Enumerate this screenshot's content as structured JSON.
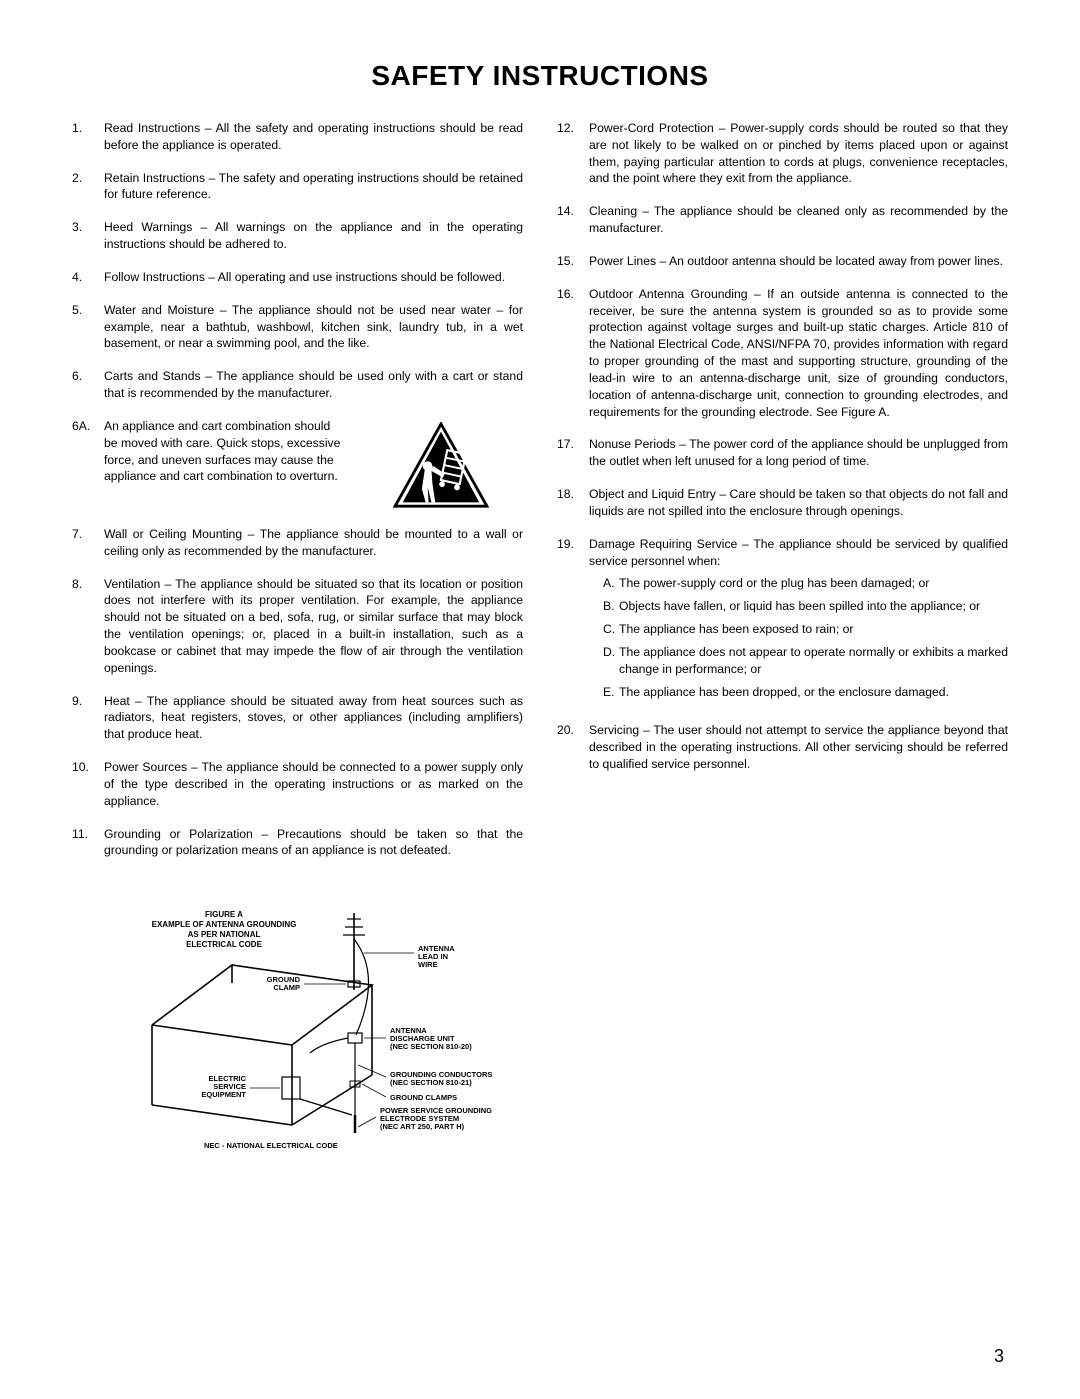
{
  "title": "SAFETY INSTRUCTIONS",
  "pageNumber": "3",
  "left": [
    {
      "n": "1.",
      "t": "Read Instructions – All the safety and operating instructions should be read before the appliance is operated."
    },
    {
      "n": "2.",
      "t": "Retain Instructions – The safety and operating instructions should be retained for future reference."
    },
    {
      "n": "3.",
      "t": "Heed Warnings – All warnings on the appliance and in the operating instructions should be adhered to."
    },
    {
      "n": "4.",
      "t": "Follow Instructions – All operating and use instructions should be followed."
    },
    {
      "n": "5.",
      "t": "Water and Moisture – The appliance should not be used near water – for example, near a bathtub, washbowl, kitchen sink, laundry tub, in a wet basement, or near a swimming pool, and the like."
    },
    {
      "n": "6.",
      "t": "Carts and Stands – The appliance should be used only with a cart or stand that is recommended by the manufacturer."
    }
  ],
  "left6A": {
    "n": "6A.",
    "t": "An appliance and cart combination should be moved with care. Quick stops, excessive force, and uneven surfaces may cause the appliance and cart combination to overturn."
  },
  "left2": [
    {
      "n": "7.",
      "t": "Wall or Ceiling Mounting – The appliance should be mounted to a wall or ceiling only as recommended by the manufacturer."
    },
    {
      "n": "8.",
      "t": "Ventilation – The appliance should be situated so that its location or position does not interfere with its proper ventilation. For example, the appliance should not be situated on a bed, sofa, rug, or similar surface that may block the ventilation openings; or, placed in a built-in installation, such as a bookcase or cabinet that may impede the flow of air through the ventilation openings."
    },
    {
      "n": "9.",
      "t": "Heat – The appliance should be situated away from heat sources such as radiators, heat registers, stoves, or other appliances (including amplifiers) that produce heat."
    },
    {
      "n": "10.",
      "t": "Power Sources – The appliance should be connected to a power supply only of the type described in the operating instructions or as marked on the appliance."
    },
    {
      "n": "11.",
      "t": "Grounding or Polarization – Precautions should be taken so that the grounding or polarization means of an appliance is not defeated."
    }
  ],
  "right": [
    {
      "n": "12.",
      "t": "Power-Cord Protection – Power-supply cords should be routed so that they are not likely to be walked on or pinched by items placed upon or against them, paying particular attention to cords at plugs, convenience receptacles, and the point where they exit from the appliance."
    },
    {
      "n": "14.",
      "t": "Cleaning – The appliance should be cleaned only as recommended by the manufacturer."
    },
    {
      "n": "15.",
      "t": "Power Lines – An outdoor antenna should be located away from power lines."
    },
    {
      "n": "16.",
      "t": "Outdoor Antenna Grounding – If an outside antenna is connected to the receiver, be sure the antenna system is grounded so as to provide some protection against voltage surges and built-up static charges. Article 810 of the National Electrical Code, ANSI/NFPA 70, provides information with regard to proper grounding of the mast and supporting structure, grounding of the lead-in wire to an antenna-discharge unit, size of grounding conductors, location of antenna-discharge unit, connection to grounding electrodes, and requirements for the grounding electrode. See Figure A."
    },
    {
      "n": "17.",
      "t": "Nonuse Periods – The power cord of the appliance should be unplugged from the outlet when left unused for a long period of time."
    },
    {
      "n": "18.",
      "t": "Object and Liquid Entry – Care should be taken so that objects do not fall and liquids are not spilled into the enclosure through openings."
    }
  ],
  "right19": {
    "n": "19.",
    "lead": "Damage Requiring Service – The appliance should be serviced by qualified service personnel when:",
    "subs": [
      {
        "l": "A.",
        "t": "The power-supply cord or the plug has been damaged; or"
      },
      {
        "l": "B.",
        "t": "Objects have fallen, or liquid has been spilled into the appliance; or"
      },
      {
        "l": "C.",
        "t": "The appliance has been exposed to rain; or"
      },
      {
        "l": "D.",
        "t": "The appliance does not appear to operate normally or exhibits a marked change in performance; or"
      },
      {
        "l": "E.",
        "t": "The appliance has been dropped, or the enclosure damaged."
      }
    ]
  },
  "right2": [
    {
      "n": "20.",
      "t": "Servicing – The user should not attempt to service the appliance beyond that described in the operating instructions. All other servicing should be referred to qualified service personnel."
    }
  ],
  "figure": {
    "caption1": "FIGURE A",
    "caption2": "EXAMPLE OF ANTENNA GROUNDING",
    "caption3": "AS PER NATIONAL",
    "caption4": "ELECTRICAL CODE",
    "lbl_antenna": "ANTENNA LEAD IN WIRE",
    "lbl_ground_clamp": "GROUND CLAMP",
    "lbl_discharge": "ANTENNA DISCHARGE UNIT (NEC SECTION 810-20)",
    "lbl_electric": "ELECTRIC SERVICE EQUIPMENT",
    "lbl_conductors": "GROUNDING CONDUCTORS (NEC SECTION 810-21)",
    "lbl_ground_clamps": "GROUND CLAMPS",
    "lbl_power_service": "POWER SERVICE GROUNDING ELECTRODE SYSTEM (NEC ART 250, PART H)",
    "lbl_nec": "NEC - NATIONAL ELECTRICAL CODE"
  }
}
